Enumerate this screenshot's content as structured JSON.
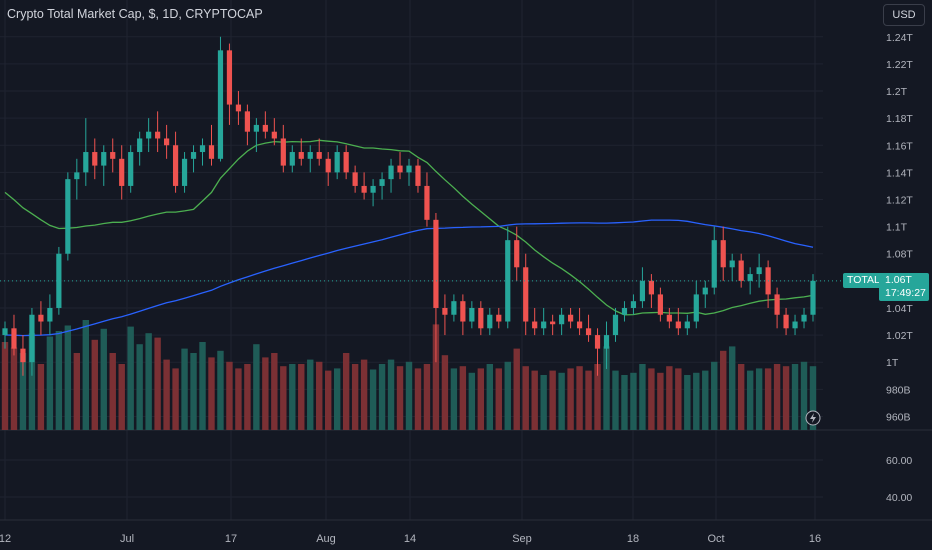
{
  "header": {
    "title": "Crypto Total Market Cap, $, 1D, CRYPTOCAP",
    "currency_button": "USD"
  },
  "price_marker": {
    "symbol_badge": "TOTAL",
    "price": "1.06T",
    "countdown": "17:49:27"
  },
  "colors": {
    "background": "#141823",
    "up": "#26a69a",
    "down": "#ef5350",
    "ma_fast": "#4caf50",
    "ma_slow": "#2962ff",
    "grid": "#1f2330"
  },
  "chart_data": [
    {
      "type": "candlestick",
      "y_axis_labels": [
        "1.24T",
        "1.22T",
        "1.2T",
        "1.18T",
        "1.16T",
        "1.14T",
        "1.12T",
        "1.1T",
        "1.08T",
        "1.06T",
        "1.04T",
        "1.02T",
        "1T",
        "980B",
        "960B"
      ],
      "x_axis_labels": [
        "12",
        "Jul",
        "17",
        "Aug",
        "14",
        "Sep",
        "18",
        "Oct",
        "16"
      ],
      "ylim": [
        0.95,
        1.245
      ],
      "current_price": 1.06,
      "ohlc": [
        [
          1.02,
          1.03,
          1.01,
          1.025
        ],
        [
          1.025,
          1.035,
          1.005,
          1.01
        ],
        [
          1.01,
          1.02,
          0.99,
          1.0
        ],
        [
          1.0,
          1.04,
          0.99,
          1.035
        ],
        [
          1.035,
          1.045,
          1.02,
          1.03
        ],
        [
          1.03,
          1.05,
          1.02,
          1.04
        ],
        [
          1.04,
          1.085,
          1.035,
          1.08
        ],
        [
          1.08,
          1.14,
          1.075,
          1.135
        ],
        [
          1.135,
          1.15,
          1.12,
          1.14
        ],
        [
          1.14,
          1.18,
          1.13,
          1.155
        ],
        [
          1.155,
          1.165,
          1.135,
          1.145
        ],
        [
          1.145,
          1.16,
          1.13,
          1.155
        ],
        [
          1.155,
          1.165,
          1.14,
          1.15
        ],
        [
          1.15,
          1.16,
          1.12,
          1.13
        ],
        [
          1.13,
          1.16,
          1.125,
          1.155
        ],
        [
          1.155,
          1.17,
          1.145,
          1.165
        ],
        [
          1.165,
          1.18,
          1.155,
          1.17
        ],
        [
          1.17,
          1.185,
          1.155,
          1.165
        ],
        [
          1.165,
          1.175,
          1.15,
          1.16
        ],
        [
          1.16,
          1.17,
          1.125,
          1.13
        ],
        [
          1.13,
          1.155,
          1.125,
          1.15
        ],
        [
          1.15,
          1.16,
          1.14,
          1.155
        ],
        [
          1.155,
          1.165,
          1.145,
          1.16
        ],
        [
          1.16,
          1.175,
          1.145,
          1.15
        ],
        [
          1.15,
          1.24,
          1.148,
          1.23
        ],
        [
          1.23,
          1.235,
          1.175,
          1.19
        ],
        [
          1.19,
          1.2,
          1.175,
          1.185
        ],
        [
          1.185,
          1.19,
          1.16,
          1.17
        ],
        [
          1.17,
          1.18,
          1.155,
          1.175
        ],
        [
          1.175,
          1.185,
          1.165,
          1.17
        ],
        [
          1.17,
          1.18,
          1.16,
          1.165
        ],
        [
          1.165,
          1.175,
          1.14,
          1.145
        ],
        [
          1.145,
          1.16,
          1.14,
          1.155
        ],
        [
          1.155,
          1.165,
          1.145,
          1.15
        ],
        [
          1.15,
          1.16,
          1.14,
          1.155
        ],
        [
          1.155,
          1.165,
          1.145,
          1.15
        ],
        [
          1.15,
          1.155,
          1.13,
          1.14
        ],
        [
          1.14,
          1.16,
          1.135,
          1.155
        ],
        [
          1.155,
          1.16,
          1.135,
          1.14
        ],
        [
          1.14,
          1.145,
          1.125,
          1.13
        ],
        [
          1.13,
          1.14,
          1.12,
          1.125
        ],
        [
          1.125,
          1.135,
          1.115,
          1.13
        ],
        [
          1.13,
          1.14,
          1.12,
          1.135
        ],
        [
          1.135,
          1.15,
          1.125,
          1.145
        ],
        [
          1.145,
          1.155,
          1.135,
          1.14
        ],
        [
          1.14,
          1.15,
          1.13,
          1.145
        ],
        [
          1.145,
          1.15,
          1.125,
          1.13
        ],
        [
          1.13,
          1.14,
          1.1,
          1.105
        ],
        [
          1.105,
          1.11,
          1.0,
          1.04
        ],
        [
          1.04,
          1.05,
          1.02,
          1.035
        ],
        [
          1.035,
          1.05,
          1.03,
          1.045
        ],
        [
          1.045,
          1.05,
          1.02,
          1.03
        ],
        [
          1.03,
          1.045,
          1.025,
          1.04
        ],
        [
          1.04,
          1.045,
          1.02,
          1.025
        ],
        [
          1.025,
          1.04,
          1.02,
          1.035
        ],
        [
          1.035,
          1.04,
          1.025,
          1.03
        ],
        [
          1.03,
          1.1,
          1.025,
          1.09
        ],
        [
          1.09,
          1.1,
          1.06,
          1.07
        ],
        [
          1.07,
          1.08,
          1.02,
          1.03
        ],
        [
          1.03,
          1.04,
          1.02,
          1.025
        ],
        [
          1.025,
          1.04,
          1.02,
          1.03
        ],
        [
          1.03,
          1.035,
          1.02,
          1.028
        ],
        [
          1.028,
          1.04,
          1.02,
          1.035
        ],
        [
          1.035,
          1.04,
          1.025,
          1.03
        ],
        [
          1.03,
          1.04,
          1.02,
          1.025
        ],
        [
          1.025,
          1.035,
          1.015,
          1.02
        ],
        [
          1.02,
          1.025,
          0.99,
          1.01
        ],
        [
          1.01,
          1.03,
          0.995,
          1.02
        ],
        [
          1.02,
          1.04,
          1.015,
          1.035
        ],
        [
          1.035,
          1.045,
          1.03,
          1.04
        ],
        [
          1.04,
          1.05,
          1.035,
          1.045
        ],
        [
          1.045,
          1.07,
          1.04,
          1.06
        ],
        [
          1.06,
          1.065,
          1.04,
          1.05
        ],
        [
          1.05,
          1.055,
          1.03,
          1.035
        ],
        [
          1.035,
          1.04,
          1.025,
          1.03
        ],
        [
          1.03,
          1.04,
          1.02,
          1.025
        ],
        [
          1.025,
          1.035,
          1.02,
          1.03
        ],
        [
          1.03,
          1.06,
          1.025,
          1.05
        ],
        [
          1.05,
          1.06,
          1.04,
          1.055
        ],
        [
          1.055,
          1.1,
          1.05,
          1.09
        ],
        [
          1.09,
          1.1,
          1.06,
          1.07
        ],
        [
          1.07,
          1.08,
          1.06,
          1.075
        ],
        [
          1.075,
          1.08,
          1.055,
          1.06
        ],
        [
          1.06,
          1.07,
          1.05,
          1.065
        ],
        [
          1.065,
          1.08,
          1.055,
          1.07
        ],
        [
          1.07,
          1.075,
          1.04,
          1.05
        ],
        [
          1.05,
          1.055,
          1.025,
          1.035
        ],
        [
          1.035,
          1.04,
          1.02,
          1.025
        ],
        [
          1.025,
          1.035,
          1.02,
          1.03
        ],
        [
          1.03,
          1.04,
          1.025,
          1.035
        ],
        [
          1.035,
          1.065,
          1.03,
          1.06
        ]
      ],
      "volume_up_flags": [
        0,
        0,
        1,
        1,
        0,
        1,
        1,
        1,
        0,
        1,
        0,
        1,
        0,
        0,
        1,
        1,
        1,
        0,
        0,
        0,
        1,
        1,
        1,
        0,
        1,
        0,
        0,
        0,
        1,
        0,
        0,
        0,
        1,
        0,
        1,
        0,
        0,
        1,
        0,
        0,
        0,
        1,
        1,
        1,
        0,
        1,
        0,
        0,
        0,
        0,
        1,
        0,
        1,
        0,
        1,
        0,
        1,
        0,
        0,
        0,
        1,
        0,
        1,
        0,
        0,
        0,
        0,
        1,
        1,
        1,
        1,
        1,
        0,
        0,
        0,
        0,
        1,
        1,
        1,
        1,
        0,
        1,
        0,
        1,
        1,
        0,
        0,
        0,
        1,
        1,
        1
      ],
      "volume_values": [
        80,
        75,
        70,
        88,
        60,
        85,
        90,
        95,
        70,
        100,
        82,
        92,
        70,
        60,
        94,
        78,
        88,
        84,
        64,
        56,
        74,
        70,
        80,
        66,
        72,
        62,
        56,
        60,
        78,
        66,
        70,
        58,
        60,
        60,
        64,
        62,
        54,
        56,
        70,
        60,
        64,
        55,
        60,
        64,
        58,
        62,
        56,
        60,
        96,
        68,
        56,
        58,
        52,
        56,
        60,
        56,
        62,
        74,
        58,
        54,
        50,
        54,
        52,
        56,
        58,
        54,
        60,
        76,
        54,
        50,
        52,
        60,
        56,
        52,
        58,
        56,
        50,
        52,
        54,
        62,
        72,
        76,
        60,
        54,
        56,
        56,
        60,
        58,
        60,
        62,
        58
      ],
      "moving_averages": [
        {
          "color": "#4caf50",
          "values_desc": "fast moving average"
        },
        {
          "color": "#2962ff",
          "values_desc": "slow moving average"
        }
      ],
      "sub_axis_labels": [
        "60.00",
        "40.00"
      ]
    }
  ]
}
